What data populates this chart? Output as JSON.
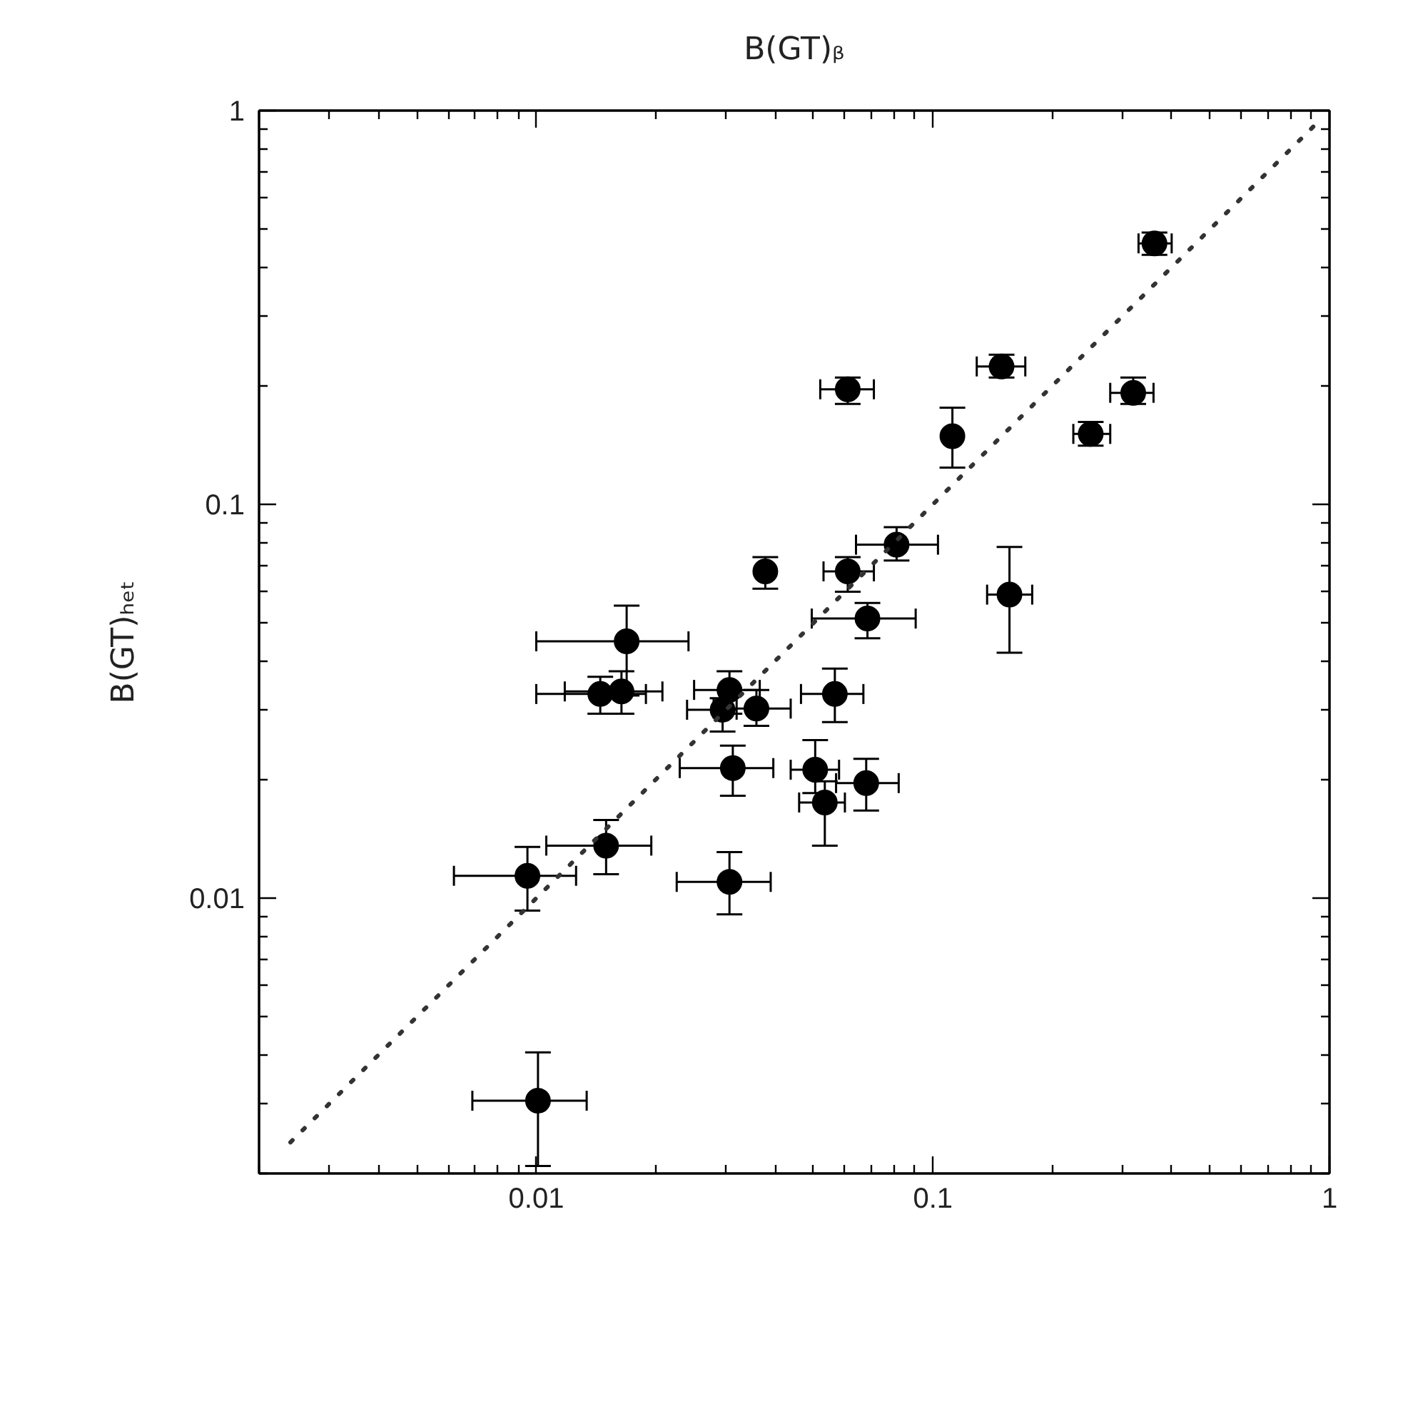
{
  "chart_data": {
    "type": "scatter",
    "xlabel": "B(GT)ᵦ",
    "ylabel": "B(GT)ₕₑₜ",
    "log": "xy",
    "xlim": [
      0.002,
      1
    ],
    "ylim": [
      0.002,
      1
    ],
    "xticks": [
      0.01,
      0.1,
      1
    ],
    "yticks": [
      0.01,
      0.1,
      1
    ],
    "grid": false,
    "marker": "circle",
    "series": [
      {
        "color": "#000000",
        "x": [
          0.362,
          0.149,
          0.061,
          0.32,
          0.112,
          0.25,
          0.081,
          0.0378,
          0.061,
          0.156,
          0.0684,
          0.0169,
          0.0145,
          0.0164,
          0.0307,
          0.0295,
          0.0359,
          0.0566,
          0.0313,
          0.0505,
          0.0679,
          0.0534,
          0.015,
          0.0095,
          0.0307,
          0.0101
        ],
        "values": [
          0.46,
          0.224,
          0.196,
          0.192,
          0.149,
          0.151,
          0.079,
          0.0676,
          0.0676,
          0.059,
          0.0513,
          0.0449,
          0.033,
          0.0335,
          0.0338,
          0.0301,
          0.0303,
          0.033,
          0.0214,
          0.0212,
          0.0196,
          0.0175,
          0.0136,
          0.0114,
          0.011,
          0.00306
        ],
        "xerrors": [
          [
            0.33,
            0.4
          ],
          [
            0.129,
            0.171
          ],
          [
            0.052,
            0.071
          ],
          [
            0.28,
            0.36
          ],
          null,
          [
            0.226,
            0.28
          ],
          [
            0.064,
            0.103
          ],
          null,
          [
            0.053,
            0.071
          ],
          [
            0.137,
            0.178
          ],
          [
            0.0495,
            0.0905
          ],
          [
            0.01,
            0.0242
          ],
          [
            0.01,
            0.0189
          ],
          [
            0.0118,
            0.0208
          ],
          [
            0.025,
            0.0366
          ],
          [
            0.024,
            0.032
          ],
          [
            0.028,
            0.0438
          ],
          [
            0.0465,
            0.0668
          ],
          [
            0.023,
            0.0396
          ],
          [
            0.0438,
            0.058
          ],
          [
            0.057,
            0.082
          ],
          [
            0.046,
            0.06
          ],
          [
            0.0106,
            0.0195
          ],
          [
            0.0062,
            0.0126
          ],
          [
            0.0226,
            0.039
          ],
          [
            0.0069,
            0.0134
          ]
        ],
        "errors": [
          [
            0.43,
            0.49
          ],
          [
            0.21,
            0.24
          ],
          [
            0.18,
            0.21
          ],
          [
            0.18,
            0.21
          ],
          [
            0.124,
            0.176
          ],
          [
            0.141,
            0.162
          ],
          [
            0.072,
            0.0875
          ],
          [
            0.0611,
            0.0735
          ],
          [
            0.06,
            0.0735
          ],
          [
            0.042,
            0.078
          ],
          [
            0.0457,
            0.0562
          ],
          [
            0.0327,
            0.0553
          ],
          [
            0.0294,
            0.0365
          ],
          [
            0.0294,
            0.0377
          ],
          [
            0.0294,
            0.0377
          ],
          [
            0.0265,
            0.0322
          ],
          [
            0.0274,
            0.0338
          ],
          [
            0.028,
            0.0383
          ],
          [
            0.0182,
            0.0244
          ],
          [
            0.0185,
            0.0252
          ],
          [
            0.0167,
            0.0226
          ],
          [
            0.0136,
            0.0198
          ],
          [
            0.0115,
            0.0158
          ],
          [
            0.0093,
            0.0135
          ],
          [
            0.0091,
            0.0131
          ],
          [
            0.00209,
            0.00406
          ]
        ]
      },
      {
        "type": "line",
        "color": "#333333",
        "line_style": "dotted",
        "marker": "none",
        "x": [
          0.0024,
          0.93
        ],
        "values": [
          0.0024,
          0.93
        ]
      }
    ]
  }
}
